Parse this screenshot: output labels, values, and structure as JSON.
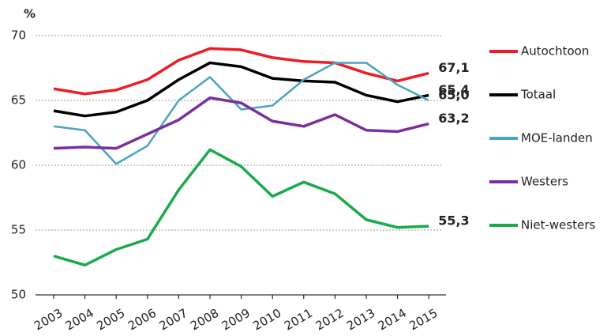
{
  "chart_data": {
    "type": "line",
    "ylabel": "%",
    "categories": [
      "2003",
      "2004",
      "2005",
      "2006",
      "2007",
      "2008",
      "2009",
      "2010",
      "2011",
      "2012",
      "2013",
      "2014",
      "2015"
    ],
    "ylim": [
      50,
      70
    ],
    "yticks": [
      50,
      55,
      60,
      65,
      70
    ],
    "grid": true,
    "series": [
      {
        "name": "Autochtoon",
        "color": "#ee1c25",
        "label_color": "#ee1c25",
        "values": [
          65.9,
          65.5,
          65.8,
          66.6,
          68.1,
          69.0,
          68.9,
          68.3,
          68.0,
          67.9,
          67.1,
          66.5,
          67.1
        ],
        "value_labels": [
          null,
          null,
          null,
          null,
          null,
          null,
          null,
          null,
          null,
          null,
          null,
          null,
          "67,1"
        ]
      },
      {
        "name": "Totaal",
        "color": "#000000",
        "label_color": "#000000",
        "values": [
          64.2,
          63.8,
          64.1,
          65.0,
          66.6,
          67.9,
          67.6,
          66.7,
          66.5,
          66.4,
          65.4,
          64.9,
          65.4
        ],
        "value_labels": [
          null,
          null,
          null,
          null,
          null,
          null,
          null,
          null,
          null,
          null,
          null,
          null,
          "65,4"
        ]
      },
      {
        "name": "MOE-landen",
        "color": "#4aa3c0",
        "label_color": "#1f6fb5",
        "values": [
          63.0,
          62.7,
          60.1,
          61.5,
          65.0,
          66.8,
          64.3,
          64.6,
          66.6,
          67.9,
          67.9,
          66.2,
          65.0
        ],
        "value_labels": [
          null,
          null,
          null,
          null,
          null,
          null,
          null,
          null,
          null,
          null,
          null,
          null,
          "65,0"
        ]
      },
      {
        "name": "Westers",
        "color": "#7b2f9e",
        "label_color": "#7b2f9e",
        "values": [
          61.3,
          61.4,
          61.3,
          62.4,
          63.5,
          65.2,
          64.8,
          63.4,
          63.0,
          63.9,
          62.7,
          62.6,
          63.2
        ],
        "value_labels": [
          null,
          null,
          null,
          null,
          null,
          null,
          null,
          null,
          null,
          null,
          null,
          null,
          "63,2"
        ]
      },
      {
        "name": "Niet-westers",
        "color": "#1aaa4b",
        "label_color": "#1aaa4b",
        "values": [
          53.0,
          52.3,
          53.5,
          54.3,
          58.1,
          61.2,
          59.9,
          57.6,
          58.7,
          57.8,
          55.8,
          55.2,
          55.3
        ],
        "value_labels": [
          null,
          null,
          null,
          null,
          null,
          null,
          null,
          null,
          null,
          null,
          null,
          null,
          "55,3"
        ]
      }
    ]
  }
}
